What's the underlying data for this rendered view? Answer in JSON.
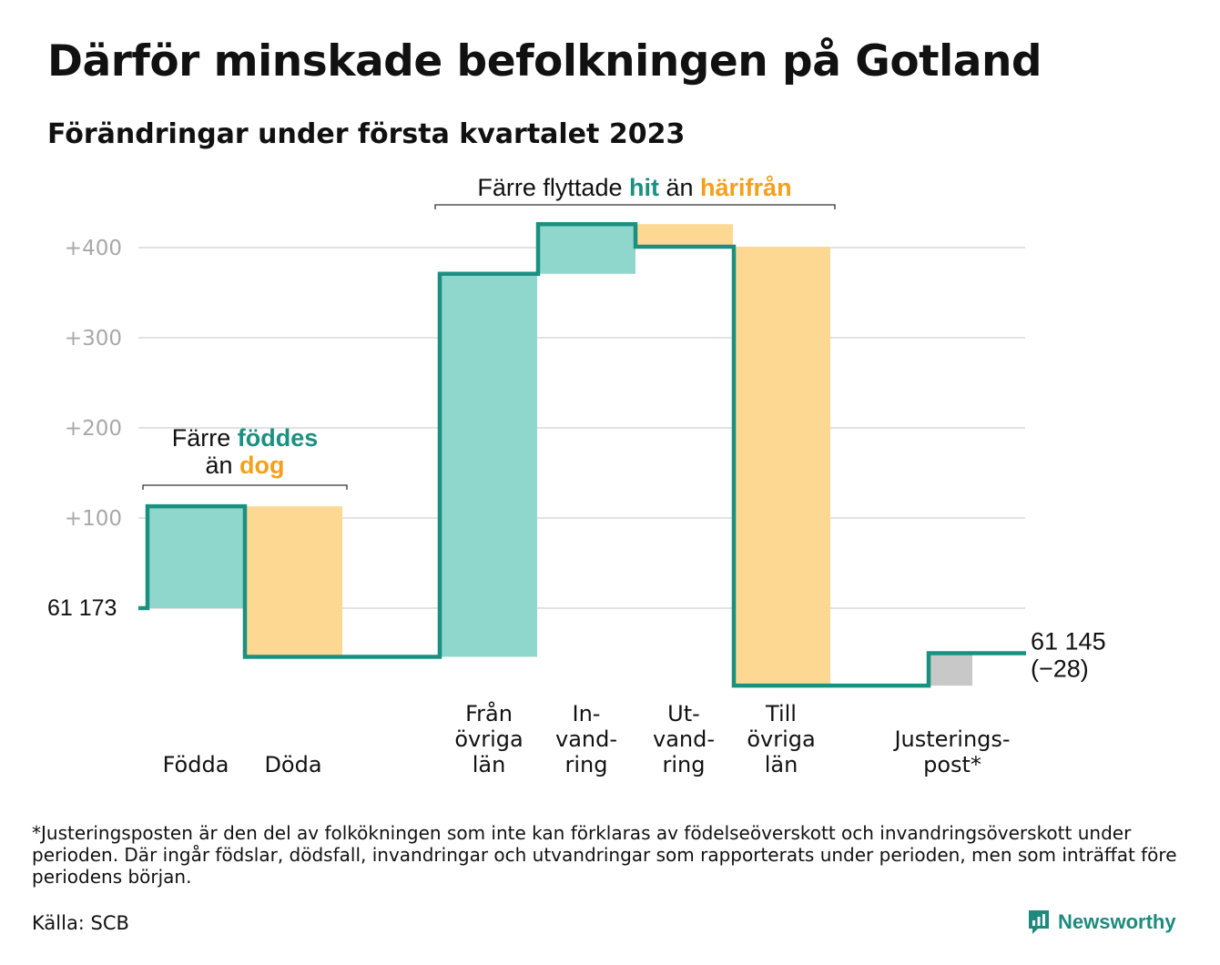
{
  "chart_data": {
    "type": "waterfall",
    "title": "Därför minskade befolkningen på Gotland",
    "subtitle": "Förändringar under första kvartalet 2023",
    "start": {
      "label": "61 173",
      "value": 61173
    },
    "end": {
      "label": "61 145",
      "change_label": "(−28)",
      "value": 61145
    },
    "yticks": [
      {
        "value": 100,
        "label": "+100"
      },
      {
        "value": 200,
        "label": "+200"
      },
      {
        "value": 300,
        "label": "+300"
      },
      {
        "value": 400,
        "label": "+400"
      }
    ],
    "ylim": [
      -85,
      430
    ],
    "categories": [
      {
        "lines": [
          "Födda"
        ],
        "change": 113,
        "kind": "increase"
      },
      {
        "lines": [
          "Döda"
        ],
        "change": -167,
        "kind": "decrease"
      },
      {
        "lines": [
          "Från",
          "övriga",
          "län"
        ],
        "change": 425,
        "kind": "increase"
      },
      {
        "lines": [
          "In-",
          "vand-",
          "ring"
        ],
        "change": 55,
        "kind": "increase"
      },
      {
        "lines": [
          "Ut-",
          "vand-",
          "ring"
        ],
        "change": -25,
        "kind": "decrease"
      },
      {
        "lines": [
          "Till",
          "övriga",
          "län"
        ],
        "change": -487,
        "kind": "decrease"
      },
      {
        "lines": [
          "Justerings-",
          "post*"
        ],
        "change": 36,
        "kind": "adjustment"
      }
    ],
    "annotations": [
      {
        "parts": [
          "Färre ",
          "föddes"
        ],
        "parts2": [
          "än ",
          "dog"
        ]
      },
      {
        "parts": [
          "Färre flyttade ",
          "hit",
          " än ",
          "härifrån"
        ]
      }
    ],
    "colors": {
      "increase": "#8fd6cc",
      "decrease": "#fcd893",
      "adjustment": "#c8c8c8",
      "line": "#1a9081",
      "hit": "#1a9081",
      "away": "#f3a01c",
      "grid": "#e2e2e2",
      "tick": "#a8a8a8"
    }
  },
  "footnote": "*Justeringsposten är den del av folkökningen som inte kan förklaras av födelseöverskott och invandringsöverskott under perioden. Där ingår födslar, dödsfall, invandringar och utvandringar som rapporterats under perioden, men som inträffat före periodens början.",
  "source": "Källa: SCB",
  "brand": {
    "name": "Newsworthy",
    "icon": "chart-logo-icon"
  }
}
